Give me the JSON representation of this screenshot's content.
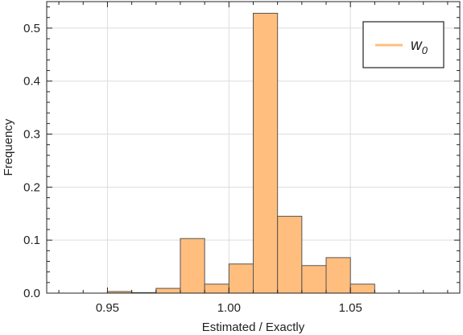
{
  "chart_data": {
    "type": "bar",
    "subtype": "histogram",
    "xlabel": "Estimated / Exactly",
    "ylabel": "Frequency",
    "xlim": [
      0.925,
      1.095
    ],
    "ylim": [
      0,
      0.55
    ],
    "xticks": [
      0.95,
      1.0,
      1.05
    ],
    "xtick_labels": [
      "0.95",
      "1.00",
      "1.05"
    ],
    "yticks": [
      0.0,
      0.1,
      0.2,
      0.3,
      0.4,
      0.5
    ],
    "ytick_labels": [
      "0.0",
      "0.1",
      "0.2",
      "0.3",
      "0.4",
      "0.5"
    ],
    "grid": true,
    "bin_width": 0.01,
    "bins": [
      {
        "x0": 0.95,
        "x1": 0.96,
        "value": 0.003
      },
      {
        "x0": 0.96,
        "x1": 0.97,
        "value": 0.001
      },
      {
        "x0": 0.97,
        "x1": 0.98,
        "value": 0.009
      },
      {
        "x0": 0.98,
        "x1": 0.99,
        "value": 0.103
      },
      {
        "x0": 0.99,
        "x1": 1.0,
        "value": 0.017
      },
      {
        "x0": 1.0,
        "x1": 1.01,
        "value": 0.055
      },
      {
        "x0": 1.01,
        "x1": 1.02,
        "value": 0.528
      },
      {
        "x0": 1.02,
        "x1": 1.03,
        "value": 0.145
      },
      {
        "x0": 1.03,
        "x1": 1.04,
        "value": 0.052
      },
      {
        "x0": 1.04,
        "x1": 1.05,
        "value": 0.067
      },
      {
        "x0": 1.05,
        "x1": 1.06,
        "value": 0.017
      }
    ],
    "series": [
      {
        "name": "w0",
        "name_base": "w",
        "name_subscript": "0",
        "color": "#ffbe7d"
      }
    ],
    "legend_position": "top-right",
    "colors": {
      "bar_fill": "#ffbe7d",
      "bar_stroke": "#555555",
      "grid": "#dddddd",
      "frame": "#222222"
    }
  }
}
